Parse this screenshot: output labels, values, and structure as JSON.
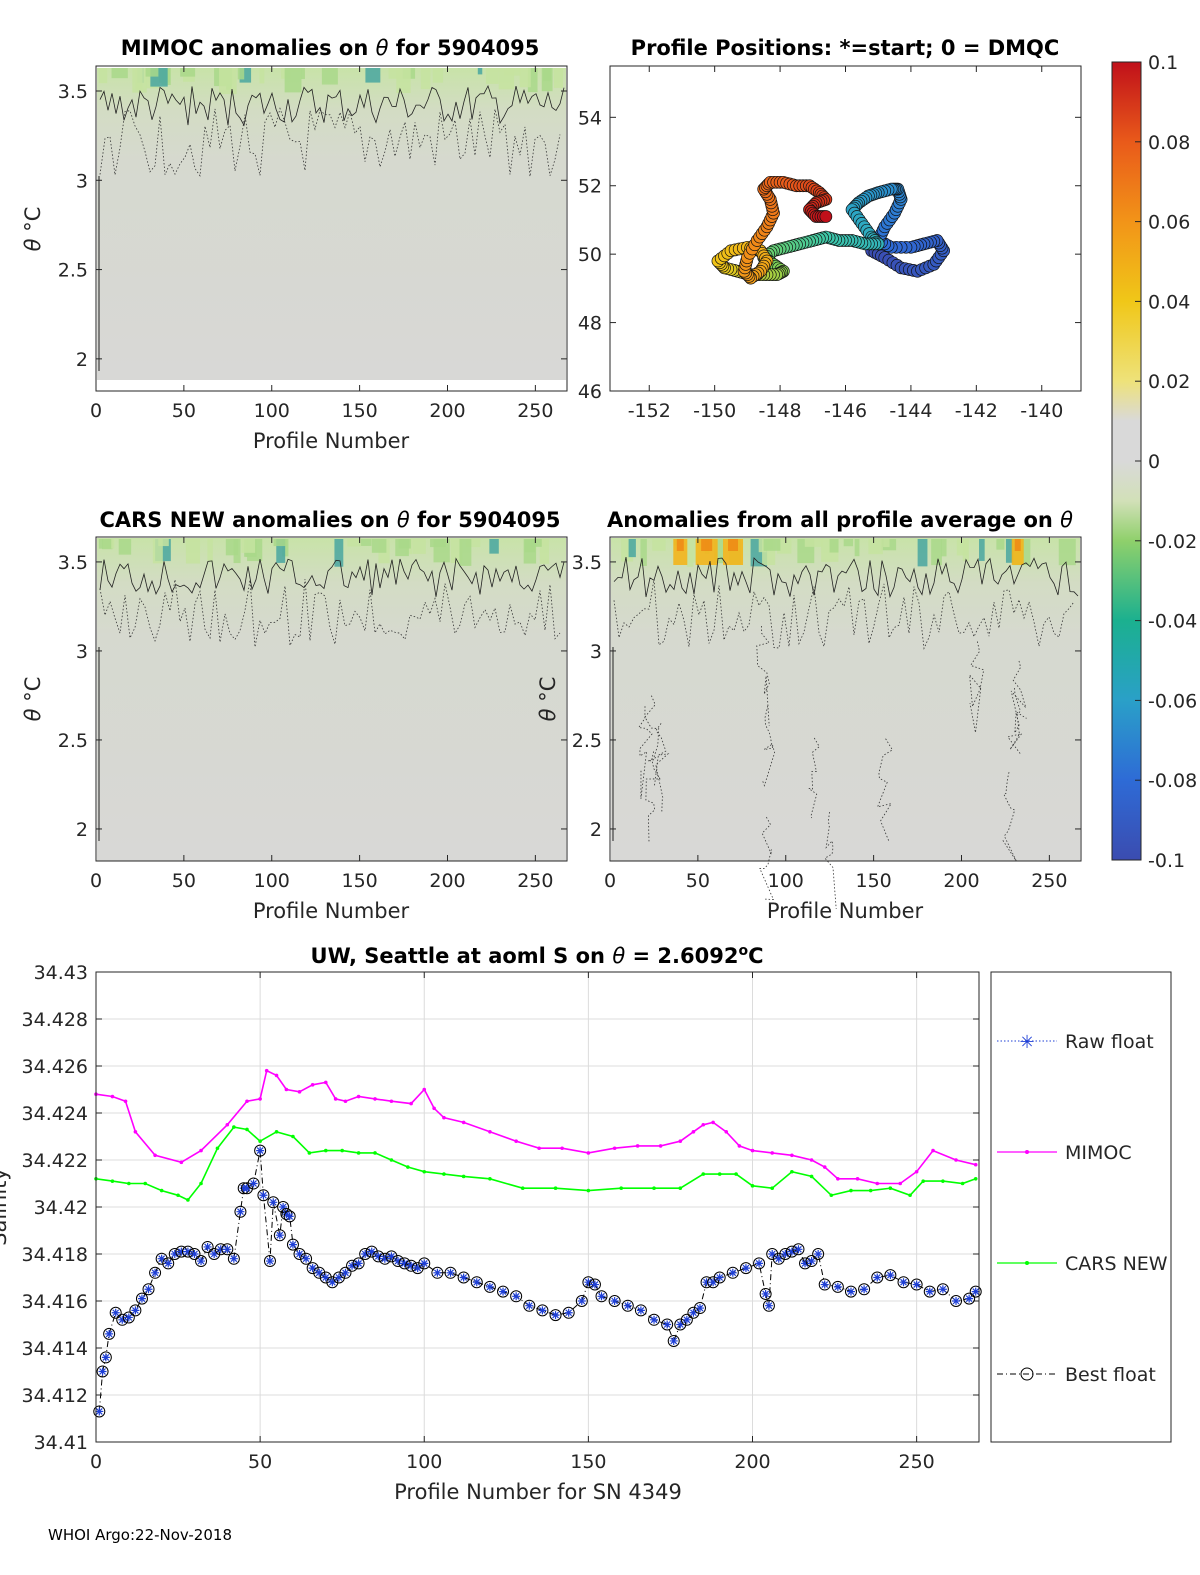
{
  "footer": "WHOI Argo:22-Nov-2018",
  "colorbar": {
    "min": -0.1,
    "max": 0.1,
    "ticks": [
      "0.1",
      "0.08",
      "0.06",
      "0.04",
      "0.02",
      "0",
      "-0.02",
      "-0.04",
      "-0.06",
      "-0.08",
      "-0.1"
    ]
  },
  "chart_data": [
    {
      "type": "heatmap",
      "title_prefix": "MIMOC anomalies on ",
      "title_sym": "θ",
      "title_suffix": "  for 5904095",
      "xlabel": "Profile Number",
      "ylabel_sym": "θ",
      "ylabel_unit": " °C",
      "xlim": [
        0,
        268
      ],
      "ylim": [
        1.82,
        3.64
      ],
      "xticks": [
        0,
        50,
        100,
        150,
        200,
        250
      ],
      "yticks": [
        2,
        2.5,
        3,
        3.5
      ],
      "xtick_labels": [
        "0",
        "50",
        "100",
        "150",
        "200",
        "250"
      ],
      "ytick_labels": [
        "2",
        "2.5",
        "3",
        "3.5"
      ],
      "description": "Mostly near-zero anomalies (grey) with small negative (green/blue) patches above 3.2 °C"
    },
    {
      "type": "scatter",
      "title": "Profile Positions: *=start; 0 = DMQC",
      "xlim": [
        -153.2,
        -138.8
      ],
      "ylim": [
        46,
        55.5
      ],
      "xticks": [
        -152,
        -150,
        -148,
        -146,
        -144,
        -142,
        -140
      ],
      "yticks": [
        46,
        48,
        50,
        52,
        54
      ],
      "xtick_labels": [
        "-152",
        "-150",
        "-148",
        "-146",
        "-144",
        "-142",
        "-140"
      ],
      "ytick_labels": [
        "46",
        "48",
        "50",
        "52",
        "54"
      ],
      "track_lon": [
        -145.2,
        -144.8,
        -144.3,
        -143.8,
        -143.3,
        -143.0,
        -143.2,
        -143.6,
        -144.0,
        -144.6,
        -145.0,
        -144.8,
        -144.5,
        -144.3,
        -144.4,
        -144.6,
        -145.0,
        -145.3,
        -145.6,
        -145.8,
        -145.5,
        -145.2,
        -145.0,
        -145.4,
        -145.8,
        -146.2,
        -146.6,
        -147.0,
        -147.4,
        -147.8,
        -148.2,
        -148.5,
        -148.2,
        -147.9,
        -148.1,
        -148.5,
        -148.9,
        -149.3,
        -149.7,
        -149.9,
        -149.5,
        -149.0,
        -148.6,
        -148.4,
        -148.6,
        -148.9,
        -149.1,
        -149.0,
        -148.7,
        -148.4,
        -148.2,
        -148.3,
        -148.5,
        -148.3,
        -147.9,
        -147.5,
        -147.1,
        -146.8,
        -146.6,
        -146.9,
        -147.1,
        -146.9,
        -146.6
      ],
      "track_lat": [
        50.1,
        49.9,
        49.6,
        49.5,
        49.7,
        50.1,
        50.4,
        50.3,
        50.2,
        50.2,
        50.4,
        50.8,
        51.2,
        51.6,
        51.9,
        51.9,
        51.8,
        51.7,
        51.5,
        51.3,
        50.9,
        50.5,
        50.3,
        50.3,
        50.4,
        50.4,
        50.5,
        50.4,
        50.3,
        50.2,
        50.1,
        49.9,
        49.7,
        49.5,
        49.4,
        49.4,
        49.4,
        49.5,
        49.6,
        49.8,
        50.1,
        50.2,
        50.1,
        49.8,
        49.5,
        49.3,
        49.5,
        49.9,
        50.4,
        50.8,
        51.2,
        51.6,
        51.9,
        52.1,
        52.1,
        52.0,
        52.0,
        51.8,
        51.6,
        51.5,
        51.3,
        51.1,
        51.1
      ]
    },
    {
      "type": "heatmap",
      "title_prefix": "CARS NEW anomalies on ",
      "title_sym": "θ",
      "title_suffix": " for 5904095",
      "xlabel": "Profile Number",
      "ylabel_sym": "θ",
      "ylabel_unit": " °C",
      "xlim": [
        0,
        268
      ],
      "ylim": [
        1.82,
        3.64
      ],
      "xticks": [
        0,
        50,
        100,
        150,
        200,
        250
      ],
      "yticks": [
        2,
        2.5,
        3,
        3.5
      ],
      "xtick_labels": [
        "0",
        "50",
        "100",
        "150",
        "200",
        "250"
      ],
      "ytick_labels": [
        "2",
        "2.5",
        "3",
        "3.5"
      ],
      "description": "Mostly near-zero anomalies with green negative patches above 3.3 °C"
    },
    {
      "type": "heatmap",
      "title_prefix": "Anomalies from all profile average on ",
      "title_sym": "θ",
      "title_suffix": "",
      "xlabel": "Profile Number",
      "ylabel_sym": "θ",
      "ylabel_unit": " °C",
      "xlim": [
        0,
        268
      ],
      "ylim": [
        1.82,
        3.64
      ],
      "xticks": [
        0,
        50,
        100,
        150,
        200,
        250
      ],
      "yticks": [
        2,
        2.5,
        3,
        3.5
      ],
      "xtick_labels": [
        "0",
        "50",
        "100",
        "150",
        "200",
        "250"
      ],
      "ytick_labels": [
        "2",
        "2.5",
        "3",
        "3.5"
      ],
      "description": "Near-zero anomalies with positive (orange/yellow) patches near profiles 50-75 and 230 above 3.4 °C"
    },
    {
      "type": "line",
      "title_prefix": "UW, Seattle at aoml S on ",
      "title_sym": "θ",
      "title_mid": " = 2.6092",
      "title_deg": "o",
      "title_end": "C",
      "xlabel": "Profile Number for SN 4349",
      "ylabel": "Salinity",
      "xlim": [
        0,
        269
      ],
      "ylim": [
        34.41,
        34.43
      ],
      "xticks": [
        0,
        50,
        100,
        150,
        200,
        250
      ],
      "yticks": [
        34.41,
        34.412,
        34.414,
        34.416,
        34.418,
        34.42,
        34.422,
        34.424,
        34.426,
        34.428,
        34.43
      ],
      "xtick_labels": [
        "0",
        "50",
        "100",
        "150",
        "200",
        "250"
      ],
      "ytick_labels": [
        "34.41",
        "34.412",
        "34.414",
        "34.416",
        "34.418",
        "34.42",
        "34.422",
        "34.424",
        "34.426",
        "34.428",
        "34.43"
      ],
      "legend": [
        "Raw float",
        "MIMOC",
        "CARS NEW",
        "Best float"
      ],
      "series": [
        {
          "name": "MIMOC",
          "color": "#ff00ff",
          "x": [
            0,
            5,
            9,
            12,
            18,
            26,
            32,
            40,
            46,
            50,
            52,
            55,
            58,
            62,
            66,
            70,
            73,
            76,
            80,
            85,
            90,
            96,
            100,
            103,
            106,
            112,
            120,
            128,
            135,
            142,
            150,
            158,
            165,
            172,
            178,
            182,
            185,
            188,
            192,
            196,
            200,
            206,
            212,
            218,
            222,
            226,
            232,
            238,
            245,
            250,
            255,
            262,
            268
          ],
          "y": [
            34.4248,
            34.4247,
            34.4245,
            34.4232,
            34.4222,
            34.4219,
            34.4224,
            34.4235,
            34.4245,
            34.4246,
            34.4258,
            34.4256,
            34.425,
            34.4249,
            34.4252,
            34.4253,
            34.4246,
            34.4245,
            34.4247,
            34.4246,
            34.4245,
            34.4244,
            34.425,
            34.4242,
            34.4238,
            34.4236,
            34.4232,
            34.4228,
            34.4225,
            34.4225,
            34.4223,
            34.4225,
            34.4226,
            34.4226,
            34.4228,
            34.4232,
            34.4235,
            34.4236,
            34.4232,
            34.4226,
            34.4224,
            34.4223,
            34.4222,
            34.422,
            34.4217,
            34.4212,
            34.4212,
            34.421,
            34.421,
            34.4215,
            34.4224,
            34.422,
            34.4218
          ]
        },
        {
          "name": "CARS NEW",
          "color": "#00ff00",
          "x": [
            0,
            5,
            10,
            15,
            20,
            25,
            28,
            32,
            37,
            42,
            46,
            50,
            55,
            60,
            65,
            70,
            75,
            80,
            85,
            90,
            95,
            100,
            106,
            112,
            120,
            130,
            140,
            150,
            160,
            170,
            178,
            185,
            190,
            195,
            200,
            206,
            212,
            218,
            224,
            230,
            236,
            242,
            248,
            252,
            258,
            264,
            268
          ],
          "y": [
            34.4212,
            34.4211,
            34.421,
            34.421,
            34.4207,
            34.4205,
            34.4203,
            34.421,
            34.4225,
            34.4234,
            34.4233,
            34.4228,
            34.4232,
            34.423,
            34.4223,
            34.4224,
            34.4224,
            34.4223,
            34.4223,
            34.422,
            34.4217,
            34.4215,
            34.4214,
            34.4213,
            34.4212,
            34.4208,
            34.4208,
            34.4207,
            34.4208,
            34.4208,
            34.4208,
            34.4214,
            34.4214,
            34.4214,
            34.4209,
            34.4208,
            34.4215,
            34.4213,
            34.4205,
            34.4207,
            34.4207,
            34.4208,
            34.4205,
            34.4211,
            34.4211,
            34.421,
            34.4212
          ]
        },
        {
          "name": "Best float",
          "color": "#000000",
          "marker_fill": "#1e3fd6",
          "x": [
            1,
            2,
            3,
            4,
            6,
            8,
            10,
            12,
            14,
            16,
            18,
            20,
            22,
            24,
            26,
            28,
            30,
            32,
            34,
            36,
            38,
            40,
            42,
            44,
            45,
            46,
            48,
            50,
            51,
            53,
            54,
            56,
            57,
            58,
            59,
            60,
            62,
            64,
            66,
            68,
            70,
            72,
            74,
            76,
            78,
            80,
            82,
            84,
            86,
            88,
            90,
            92,
            94,
            96,
            98,
            100,
            104,
            108,
            112,
            116,
            120,
            124,
            128,
            132,
            136,
            140,
            144,
            148,
            150,
            152,
            154,
            158,
            162,
            166,
            170,
            174,
            176,
            178,
            180,
            182,
            184,
            186,
            188,
            190,
            194,
            198,
            202,
            204,
            205,
            206,
            208,
            210,
            212,
            214,
            216,
            218,
            220,
            222,
            226,
            230,
            234,
            238,
            242,
            246,
            250,
            254,
            258,
            262,
            266,
            268
          ],
          "y": [
            34.4113,
            34.413,
            34.4136,
            34.4146,
            34.4155,
            34.4152,
            34.4153,
            34.4156,
            34.4161,
            34.4165,
            34.4172,
            34.4178,
            34.4176,
            34.418,
            34.4181,
            34.4181,
            34.418,
            34.4177,
            34.4183,
            34.418,
            34.4182,
            34.4182,
            34.4178,
            34.4198,
            34.4208,
            34.4208,
            34.421,
            34.4224,
            34.4205,
            34.4177,
            34.4202,
            34.4188,
            34.42,
            34.4197,
            34.4196,
            34.4184,
            34.418,
            34.4178,
            34.4174,
            34.4172,
            34.417,
            34.4168,
            34.417,
            34.4172,
            34.4175,
            34.4176,
            34.418,
            34.4181,
            34.4179,
            34.4178,
            34.4179,
            34.4177,
            34.4176,
            34.4175,
            34.4174,
            34.4176,
            34.4172,
            34.4172,
            34.417,
            34.4168,
            34.4166,
            34.4164,
            34.4162,
            34.4158,
            34.4156,
            34.4154,
            34.4155,
            34.416,
            34.4168,
            34.4167,
            34.4162,
            34.416,
            34.4158,
            34.4156,
            34.4152,
            34.415,
            34.4143,
            34.415,
            34.4152,
            34.4155,
            34.4157,
            34.4168,
            34.4168,
            34.417,
            34.4172,
            34.4174,
            34.4176,
            34.4163,
            34.4158,
            34.418,
            34.4178,
            34.418,
            34.4181,
            34.4182,
            34.4176,
            34.4177,
            34.418,
            34.4167,
            34.4166,
            34.4164,
            34.4165,
            34.417,
            34.4171,
            34.4168,
            34.4167,
            34.4164,
            34.4165,
            34.416,
            34.4161,
            34.4164
          ]
        }
      ]
    }
  ]
}
